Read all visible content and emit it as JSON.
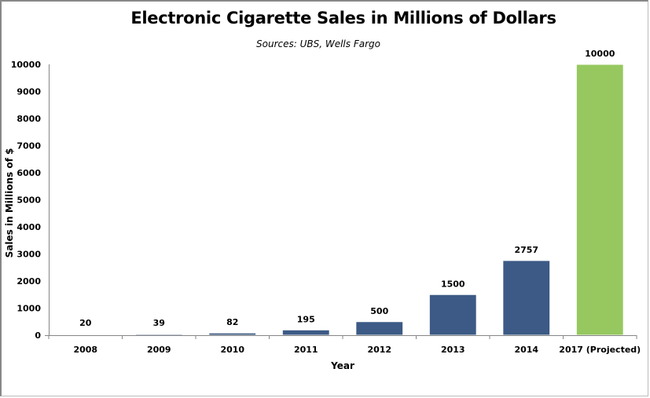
{
  "chart_data": {
    "type": "bar",
    "title": "Electronic Cigarette Sales in Millions of Dollars",
    "subtitle": "Sources: UBS, Wells Fargo",
    "xlabel": "Year",
    "ylabel": "Sales in Millions of $",
    "categories": [
      "2008",
      "2009",
      "2010",
      "2011",
      "2012",
      "2013",
      "2014",
      "2017 (Projected)"
    ],
    "values": [
      20,
      39,
      82,
      195,
      500,
      1500,
      2757,
      10000
    ],
    "data_labels": [
      "20",
      "39",
      "82",
      "195",
      "500",
      "1500",
      "2757",
      "10000"
    ],
    "ylim": [
      0,
      10000
    ],
    "yticks": [
      0,
      1000,
      2000,
      3000,
      4000,
      5000,
      6000,
      7000,
      8000,
      9000,
      10000
    ],
    "grid": false,
    "legend": "none",
    "colors": {
      "actual": "#3c5a85",
      "projected": "#96c85f"
    },
    "projected_index": 7
  }
}
